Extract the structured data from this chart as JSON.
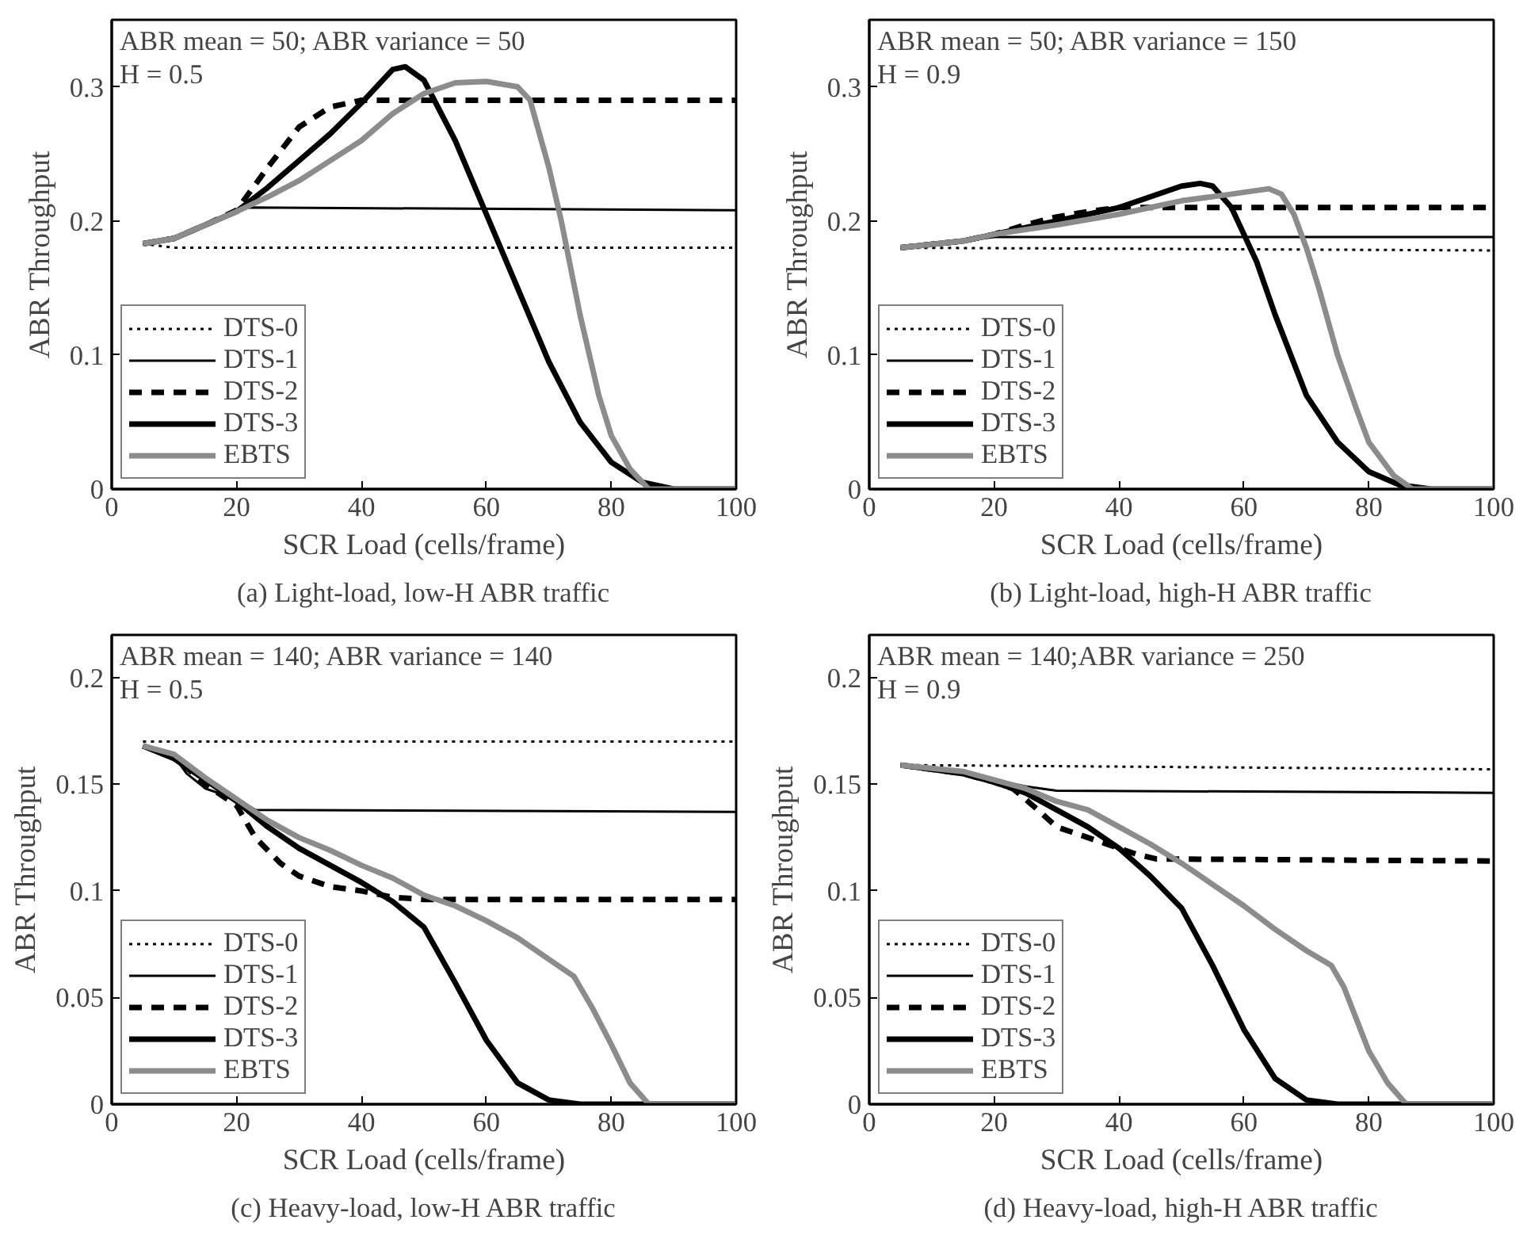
{
  "chart_data": [
    {
      "type": "line",
      "title": "(a) Light-load, low-H ABR traffic",
      "xlabel": "SCR Load (cells/frame)",
      "ylabel": "ABR Throughput",
      "annotations": [
        "ABR mean = 50;   ABR variance = 50",
        "H = 0.5"
      ],
      "xlim": [
        0,
        100
      ],
      "ylim": [
        0,
        0.35
      ],
      "xticks": [
        0,
        20,
        40,
        60,
        80,
        100
      ],
      "yticks": [
        0,
        0.1,
        0.2,
        0.3
      ],
      "grid": false,
      "legend": "bottom left",
      "series": [
        {
          "name": "DTS-0",
          "color": "#000000",
          "line_style": "dotted",
          "x": [
            5,
            10,
            100
          ],
          "values": [
            0.183,
            0.18,
            0.18
          ]
        },
        {
          "name": "DTS-1",
          "color": "#000000",
          "line_style": "solid",
          "x": [
            5,
            10,
            15,
            20,
            22,
            100
          ],
          "values": [
            0.183,
            0.187,
            0.197,
            0.207,
            0.21,
            0.208
          ]
        },
        {
          "name": "DTS-2",
          "color": "#000000",
          "line_style": "dashed",
          "x": [
            5,
            10,
            15,
            20,
            25,
            30,
            35,
            40,
            100
          ],
          "values": [
            0.183,
            0.187,
            0.197,
            0.208,
            0.24,
            0.27,
            0.285,
            0.29,
            0.29
          ]
        },
        {
          "name": "DTS-3",
          "color": "#000000",
          "line_style": "solid",
          "x": [
            5,
            10,
            15,
            20,
            25,
            30,
            35,
            40,
            45,
            47,
            50,
            55,
            60,
            65,
            70,
            75,
            80,
            85,
            90,
            100
          ],
          "values": [
            0.183,
            0.187,
            0.197,
            0.207,
            0.225,
            0.245,
            0.265,
            0.288,
            0.313,
            0.315,
            0.305,
            0.26,
            0.205,
            0.15,
            0.095,
            0.05,
            0.02,
            0.005,
            0,
            0
          ]
        },
        {
          "name": "EBTS",
          "color": "#8c8c8c",
          "line_style": "solid",
          "x": [
            5,
            10,
            15,
            20,
            25,
            30,
            35,
            40,
            45,
            50,
            55,
            60,
            65,
            67,
            70,
            72,
            75,
            78,
            80,
            83,
            86,
            100
          ],
          "values": [
            0.183,
            0.187,
            0.197,
            0.207,
            0.218,
            0.23,
            0.245,
            0.26,
            0.28,
            0.295,
            0.303,
            0.304,
            0.3,
            0.29,
            0.24,
            0.2,
            0.13,
            0.07,
            0.04,
            0.015,
            0,
            0
          ]
        }
      ]
    },
    {
      "type": "line",
      "title": "(b) Light-load, high-H ABR traffic",
      "xlabel": "SCR Load (cells/frame)",
      "ylabel": "ABR Throughput",
      "annotations": [
        "ABR mean = 50; ABR variance = 150",
        "H = 0.9"
      ],
      "xlim": [
        0,
        100
      ],
      "ylim": [
        0,
        0.35
      ],
      "xticks": [
        0,
        20,
        40,
        60,
        80,
        100
      ],
      "yticks": [
        0,
        0.1,
        0.2,
        0.3
      ],
      "grid": false,
      "legend": "bottom left",
      "series": [
        {
          "name": "DTS-0",
          "color": "#000000",
          "line_style": "dotted",
          "x": [
            5,
            100
          ],
          "values": [
            0.18,
            0.178
          ]
        },
        {
          "name": "DTS-1",
          "color": "#000000",
          "line_style": "solid",
          "x": [
            5,
            15,
            20,
            100
          ],
          "values": [
            0.18,
            0.185,
            0.188,
            0.188
          ]
        },
        {
          "name": "DTS-2",
          "color": "#000000",
          "line_style": "dashed",
          "x": [
            5,
            15,
            20,
            25,
            30,
            35,
            40,
            100
          ],
          "values": [
            0.18,
            0.185,
            0.19,
            0.197,
            0.203,
            0.207,
            0.21,
            0.21
          ]
        },
        {
          "name": "DTS-3",
          "color": "#000000",
          "line_style": "solid",
          "x": [
            5,
            15,
            20,
            30,
            40,
            50,
            53,
            55,
            58,
            60,
            62,
            65,
            70,
            75,
            80,
            85,
            90,
            100
          ],
          "values": [
            0.18,
            0.185,
            0.19,
            0.2,
            0.21,
            0.226,
            0.228,
            0.226,
            0.21,
            0.19,
            0.17,
            0.13,
            0.07,
            0.035,
            0.013,
            0.003,
            0,
            0
          ]
        },
        {
          "name": "EBTS",
          "color": "#8c8c8c",
          "line_style": "solid",
          "x": [
            5,
            15,
            20,
            30,
            40,
            50,
            58,
            64,
            66,
            68,
            70,
            72,
            75,
            78,
            80,
            84,
            87,
            100
          ],
          "values": [
            0.18,
            0.185,
            0.19,
            0.197,
            0.205,
            0.215,
            0.22,
            0.224,
            0.22,
            0.205,
            0.18,
            0.15,
            0.1,
            0.06,
            0.035,
            0.01,
            0,
            0
          ]
        }
      ]
    },
    {
      "type": "line",
      "title": "(c) Heavy-load, low-H ABR traffic",
      "xlabel": "SCR Load (cells/frame)",
      "ylabel": "ABR Throughput",
      "annotations": [
        "ABR mean = 140; ABR variance = 140",
        "H = 0.5"
      ],
      "xlim": [
        0,
        100
      ],
      "ylim": [
        0,
        0.22
      ],
      "xticks": [
        0,
        20,
        40,
        60,
        80,
        100
      ],
      "yticks": [
        0,
        0.05,
        0.1,
        0.15,
        0.2
      ],
      "grid": false,
      "legend": "bottom left",
      "series": [
        {
          "name": "DTS-0",
          "color": "#000000",
          "line_style": "dotted",
          "x": [
            5,
            100
          ],
          "values": [
            0.17,
            0.17
          ]
        },
        {
          "name": "DTS-1",
          "color": "#000000",
          "line_style": "solid",
          "x": [
            5,
            10,
            12,
            15,
            18,
            20,
            23,
            100
          ],
          "values": [
            0.168,
            0.163,
            0.155,
            0.148,
            0.145,
            0.143,
            0.138,
            0.137
          ]
        },
        {
          "name": "DTS-2",
          "color": "#000000",
          "line_style": "dashed",
          "x": [
            5,
            10,
            15,
            20,
            23,
            27,
            30,
            35,
            40,
            45,
            50,
            100
          ],
          "values": [
            0.168,
            0.163,
            0.15,
            0.14,
            0.125,
            0.113,
            0.107,
            0.102,
            0.1,
            0.097,
            0.096,
            0.096
          ]
        },
        {
          "name": "DTS-3",
          "color": "#000000",
          "line_style": "solid",
          "x": [
            5,
            10,
            15,
            20,
            25,
            30,
            35,
            40,
            45,
            50,
            55,
            60,
            65,
            70,
            75,
            100
          ],
          "values": [
            0.168,
            0.162,
            0.152,
            0.142,
            0.13,
            0.12,
            0.112,
            0.104,
            0.095,
            0.083,
            0.057,
            0.03,
            0.01,
            0.002,
            0,
            0
          ]
        },
        {
          "name": "EBTS",
          "color": "#8c8c8c",
          "line_style": "solid",
          "x": [
            5,
            10,
            15,
            20,
            25,
            30,
            35,
            40,
            45,
            50,
            55,
            60,
            65,
            70,
            74,
            77,
            80,
            83,
            86,
            100
          ],
          "values": [
            0.168,
            0.164,
            0.153,
            0.143,
            0.133,
            0.125,
            0.119,
            0.112,
            0.106,
            0.098,
            0.093,
            0.086,
            0.078,
            0.068,
            0.06,
            0.045,
            0.028,
            0.01,
            0,
            0
          ]
        }
      ]
    },
    {
      "type": "line",
      "title": "(d) Heavy-load, high-H ABR traffic",
      "xlabel": "SCR Load (cells/frame)",
      "ylabel": "ABR Throughput",
      "annotations": [
        "ABR mean = 140;ABR variance = 250",
        "H = 0.9"
      ],
      "xlim": [
        0,
        100
      ],
      "ylim": [
        0,
        0.22
      ],
      "xticks": [
        0,
        20,
        40,
        60,
        80,
        100
      ],
      "yticks": [
        0,
        0.05,
        0.1,
        0.15,
        0.2
      ],
      "grid": false,
      "legend": "bottom left",
      "series": [
        {
          "name": "DTS-0",
          "color": "#000000",
          "line_style": "dotted",
          "x": [
            5,
            100
          ],
          "values": [
            0.159,
            0.157
          ]
        },
        {
          "name": "DTS-1",
          "color": "#000000",
          "line_style": "solid",
          "x": [
            5,
            15,
            20,
            25,
            30,
            100
          ],
          "values": [
            0.159,
            0.155,
            0.152,
            0.149,
            0.147,
            0.146
          ]
        },
        {
          "name": "DTS-2",
          "color": "#000000",
          "line_style": "dashed",
          "x": [
            5,
            15,
            20,
            23,
            27,
            30,
            35,
            40,
            43,
            46,
            100
          ],
          "values": [
            0.159,
            0.155,
            0.151,
            0.148,
            0.138,
            0.13,
            0.125,
            0.12,
            0.117,
            0.115,
            0.114
          ]
        },
        {
          "name": "DTS-3",
          "color": "#000000",
          "line_style": "solid",
          "x": [
            5,
            15,
            20,
            25,
            30,
            35,
            40,
            45,
            50,
            55,
            60,
            65,
            70,
            75,
            100
          ],
          "values": [
            0.159,
            0.155,
            0.151,
            0.146,
            0.138,
            0.13,
            0.12,
            0.107,
            0.092,
            0.065,
            0.035,
            0.012,
            0.002,
            0,
            0
          ]
        },
        {
          "name": "EBTS",
          "color": "#8c8c8c",
          "line_style": "solid",
          "x": [
            5,
            15,
            20,
            25,
            30,
            35,
            40,
            45,
            50,
            55,
            60,
            65,
            70,
            74,
            76,
            78,
            80,
            83,
            86,
            100
          ],
          "values": [
            0.159,
            0.156,
            0.152,
            0.148,
            0.142,
            0.138,
            0.13,
            0.122,
            0.113,
            0.103,
            0.093,
            0.082,
            0.072,
            0.065,
            0.055,
            0.04,
            0.025,
            0.01,
            0,
            0
          ]
        }
      ]
    }
  ]
}
